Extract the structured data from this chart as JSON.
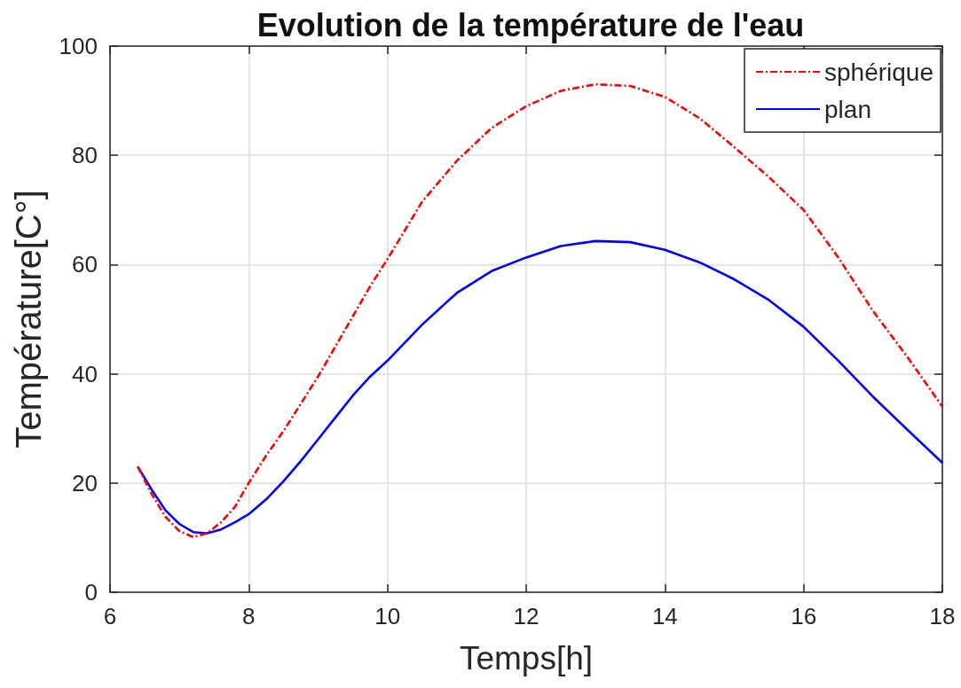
{
  "chart_data": {
    "type": "line",
    "title": "Evolution de la température de l'eau",
    "xlabel": "Temps[h]",
    "ylabel": "Température[C°]",
    "x": [
      6.4,
      6.6,
      6.8,
      7.0,
      7.2,
      7.4,
      7.6,
      7.8,
      8.0,
      8.25,
      8.5,
      8.75,
      9.0,
      9.25,
      9.5,
      9.75,
      10,
      10.5,
      11,
      11.5,
      12,
      12.5,
      13,
      13.5,
      14,
      14.5,
      15,
      15.5,
      16,
      16.5,
      17,
      17.5,
      18
    ],
    "series": [
      {
        "name": "sphérique",
        "color": "#ff0000",
        "line_style": "dashdot",
        "values": [
          23,
          18,
          13.8,
          11.2,
          10.1,
          10.8,
          12.8,
          15.6,
          20,
          25,
          29.5,
          34.5,
          39.5,
          45,
          50.5,
          56,
          61,
          71.5,
          79,
          85,
          89,
          91.8,
          93,
          92.7,
          90.7,
          86.8,
          81.5,
          76,
          70,
          61.3,
          51.5,
          43,
          34
        ]
      },
      {
        "name": "plan",
        "color": "#0000ff",
        "line_style": "solid",
        "values": [
          23,
          18.8,
          15,
          12.5,
          11,
          10.8,
          11.5,
          12.8,
          14.3,
          17,
          20.3,
          24,
          28,
          32,
          36,
          39.5,
          42.4,
          49,
          54.8,
          58.8,
          61.3,
          63.4,
          64.3,
          64.1,
          62.7,
          60.4,
          57.3,
          53.5,
          48.6,
          42.4,
          35.8,
          29.7,
          23.7
        ]
      }
    ],
    "xlim": [
      6,
      18
    ],
    "xticks": [
      6,
      8,
      10,
      12,
      14,
      16,
      18
    ],
    "ylim": [
      0,
      100
    ],
    "yticks": [
      0,
      20,
      40,
      60,
      80,
      100
    ],
    "grid": true,
    "legend": "top right",
    "marker": "none"
  }
}
